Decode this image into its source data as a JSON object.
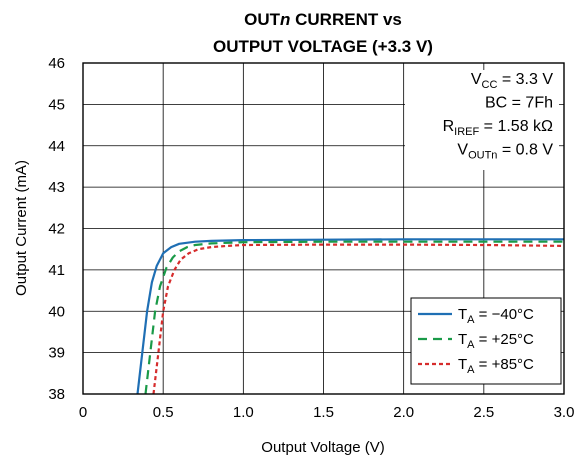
{
  "chart_data": {
    "type": "line",
    "title": {
      "line1_prefix": "OUT",
      "line1_italic": "n",
      "line1_suffix": " CURRENT vs",
      "line2": "OUTPUT VOLTAGE (+3.3 V)"
    },
    "xlabel": "Output Voltage (V)",
    "ylabel": "Output Current (mA)",
    "xlim": [
      0,
      3.0
    ],
    "ylim": [
      38,
      46
    ],
    "xticks": [
      "0",
      "0.5",
      "1.0",
      "1.5",
      "2.0",
      "2.5",
      "3.0"
    ],
    "xtick_values": [
      0,
      0.5,
      1.0,
      1.5,
      2.0,
      2.5,
      3.0
    ],
    "yticks": [
      "38",
      "39",
      "40",
      "41",
      "42",
      "43",
      "44",
      "45",
      "46"
    ],
    "ytick_values": [
      38,
      39,
      40,
      41,
      42,
      43,
      44,
      45,
      46
    ],
    "grid": true,
    "conditions": [
      {
        "main": "V",
        "sub": "CC",
        "rest": " = 3.3 V"
      },
      {
        "main": "BC = 7Fh",
        "sub": "",
        "rest": ""
      },
      {
        "main": "R",
        "sub": "IREF",
        "rest": " = 1.58 kΩ"
      },
      {
        "main": "V",
        "sub": "OUTn",
        "rest": " = 0.8 V"
      }
    ],
    "legend_position": "bottom-right",
    "series": [
      {
        "name": "TA = −40°C",
        "legend_main": "T",
        "legend_sub": "A",
        "legend_rest": " = −40°C",
        "color": "#1f6fb4",
        "dash": "solid",
        "x": [
          0.34,
          0.37,
          0.4,
          0.43,
          0.46,
          0.5,
          0.55,
          0.6,
          0.7,
          0.8,
          1.0,
          1.5,
          2.0,
          2.5,
          3.0
        ],
        "y": [
          38.0,
          39.0,
          40.0,
          40.7,
          41.1,
          41.4,
          41.55,
          41.63,
          41.68,
          41.7,
          41.72,
          41.73,
          41.74,
          41.74,
          41.74
        ]
      },
      {
        "name": "TA = +25°C",
        "legend_main": "T",
        "legend_sub": "A",
        "legend_rest": " = +25°C",
        "color": "#1a9a48",
        "dash": "long",
        "x": [
          0.39,
          0.42,
          0.45,
          0.48,
          0.52,
          0.56,
          0.6,
          0.65,
          0.7,
          0.8,
          1.0,
          1.5,
          2.0,
          2.5,
          3.0
        ],
        "y": [
          38.0,
          39.0,
          40.0,
          40.6,
          41.05,
          41.3,
          41.45,
          41.55,
          41.6,
          41.64,
          41.67,
          41.68,
          41.68,
          41.68,
          41.68
        ]
      },
      {
        "name": "TA = +85°C",
        "legend_main": "T",
        "legend_sub": "A",
        "legend_rest": " = +85°C",
        "color": "#d62c2c",
        "dash": "short",
        "x": [
          0.44,
          0.47,
          0.5,
          0.53,
          0.57,
          0.61,
          0.66,
          0.72,
          0.8,
          0.9,
          1.0,
          1.5,
          2.0,
          2.5,
          3.0
        ],
        "y": [
          38.0,
          39.0,
          40.0,
          40.6,
          41.0,
          41.25,
          41.4,
          41.5,
          41.55,
          41.58,
          41.6,
          41.61,
          41.61,
          41.6,
          41.58
        ]
      }
    ]
  }
}
